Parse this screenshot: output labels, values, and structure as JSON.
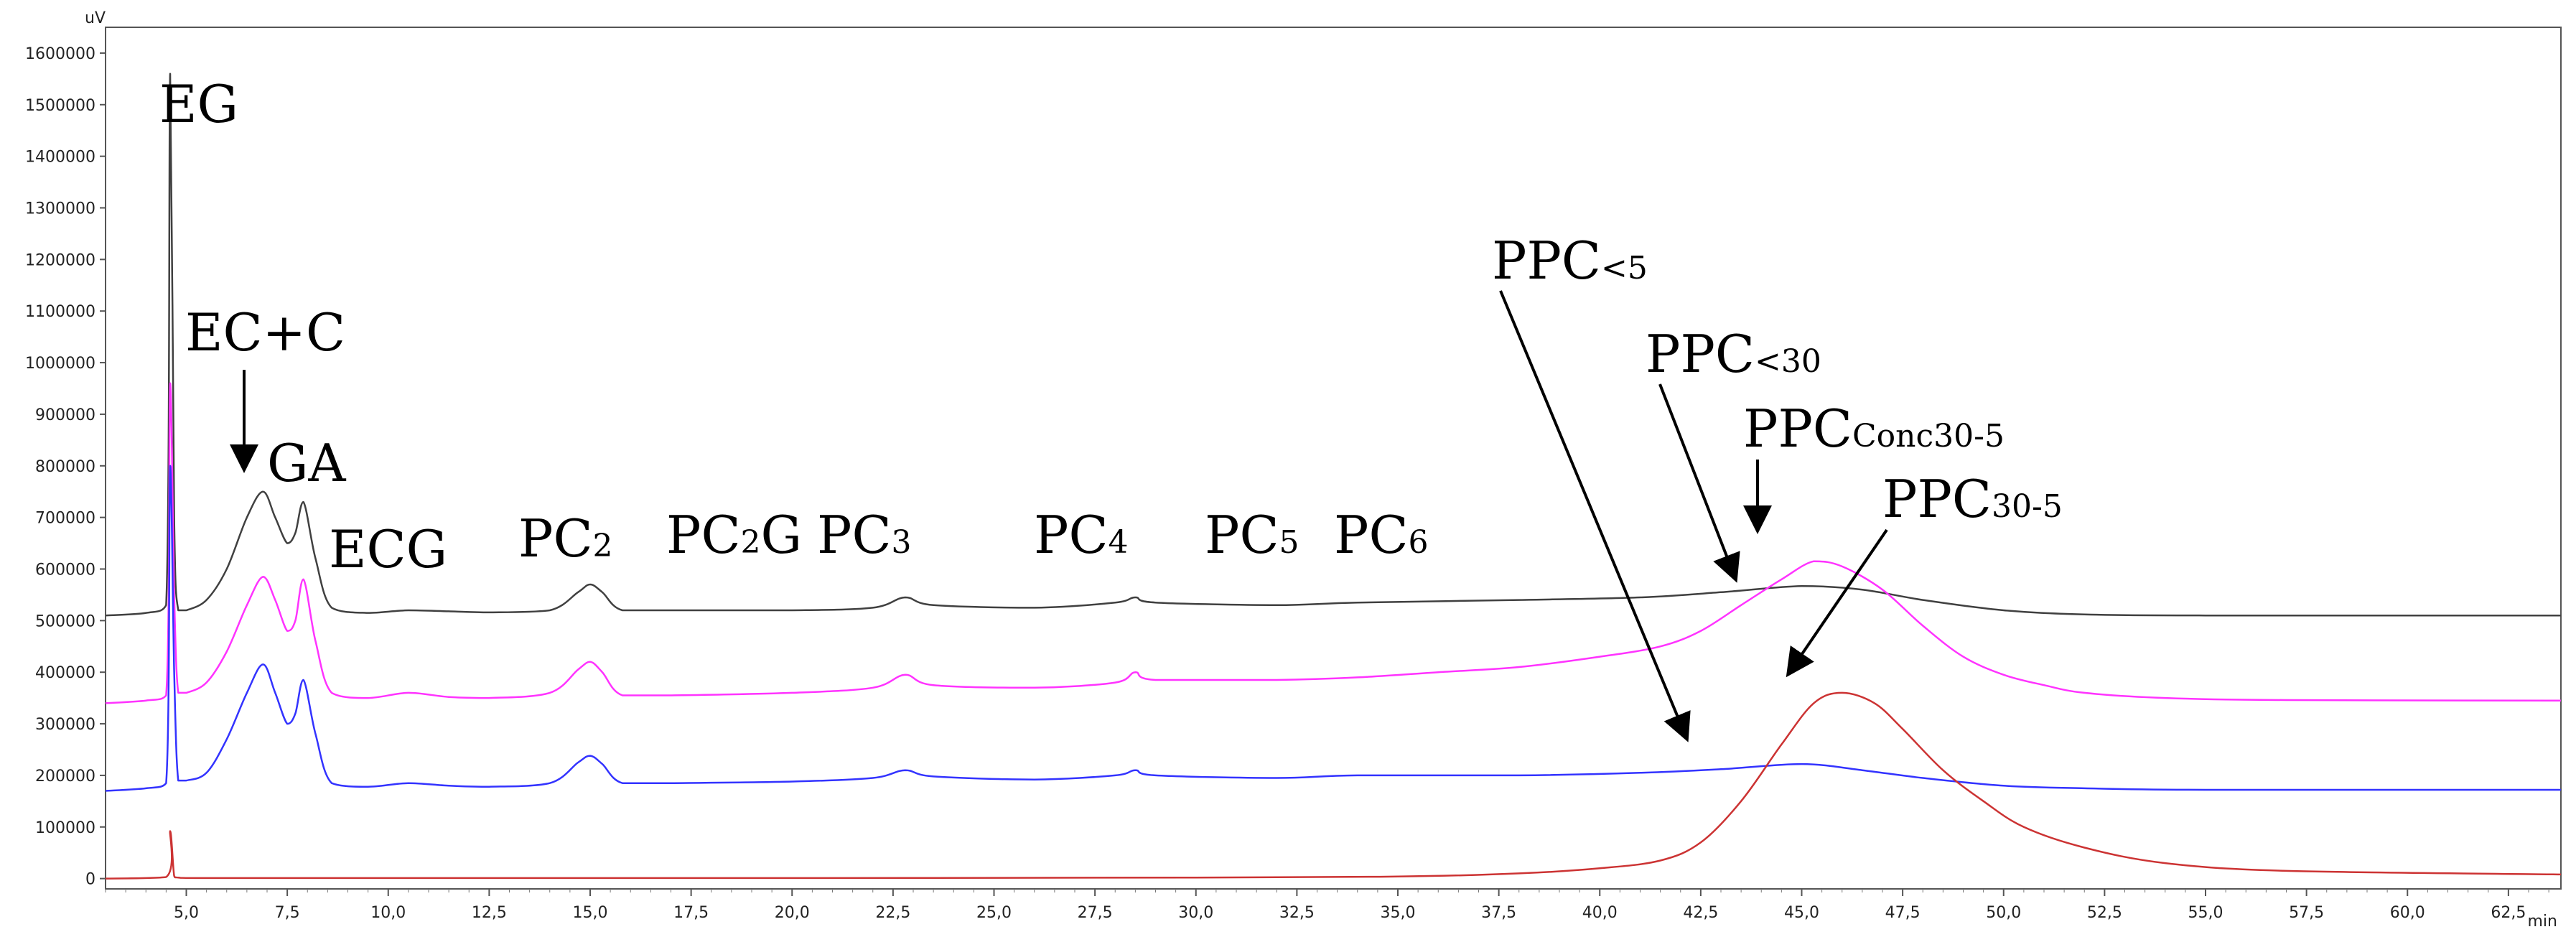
{
  "chart_data": {
    "type": "line",
    "y_unit_label": "uV",
    "x_unit_label": "min",
    "xlim": [
      3.0,
      63.8
    ],
    "ylim": [
      -20000,
      1650000
    ],
    "x_ticks": [
      5.0,
      7.5,
      10.0,
      12.5,
      15.0,
      17.5,
      20.0,
      22.5,
      25.0,
      27.5,
      30.0,
      32.5,
      35.0,
      37.5,
      40.0,
      42.5,
      45.0,
      47.5,
      50.0,
      52.5,
      55.0,
      57.5,
      60.0,
      62.5
    ],
    "x_tick_labels": [
      "5,0",
      "7,5",
      "10,0",
      "12,5",
      "15,0",
      "17,5",
      "20,0",
      "22,5",
      "25,0",
      "27,5",
      "30,0",
      "32,5",
      "35,0",
      "37,5",
      "40,0",
      "42,5",
      "45,0",
      "47,5",
      "50,0",
      "52,5",
      "55,0",
      "57,5",
      "60,0",
      "62,5"
    ],
    "y_ticks": [
      0,
      100000,
      200000,
      300000,
      400000,
      500000,
      600000,
      700000,
      800000,
      900000,
      1000000,
      1100000,
      1200000,
      1300000,
      1400000,
      1500000,
      1600000
    ],
    "y_tick_labels": [
      "0",
      "100000",
      "200000",
      "300000",
      "400000",
      "500000",
      "600000",
      "700000",
      "800000",
      "900000",
      "1000000",
      "1100000",
      "1200000",
      "1300000",
      "1400000",
      "1500000",
      "1600000"
    ],
    "grid": false,
    "series": [
      {
        "color": "#404040",
        "x": [
          3.0,
          4.0,
          4.5,
          4.6,
          4.7,
          4.8,
          5.0,
          5.5,
          6.0,
          6.5,
          6.9,
          7.2,
          7.5,
          7.7,
          7.9,
          8.2,
          8.6,
          9.5,
          10.5,
          11.5,
          12.5,
          14.0,
          14.7,
          15.0,
          15.3,
          15.8,
          17.0,
          20.0,
          22.0,
          22.8,
          23.5,
          26.0,
          28.0,
          28.5,
          29.0,
          32.0,
          34.0,
          38.0,
          41.0,
          43.0,
          45.0,
          46.5,
          48.0,
          50.0,
          52.0,
          55.0,
          63.8
        ],
        "y": [
          510000,
          515000,
          530000,
          1560000,
          700000,
          520000,
          520000,
          540000,
          600000,
          700000,
          750000,
          700000,
          650000,
          670000,
          730000,
          620000,
          525000,
          515000,
          520000,
          518000,
          516000,
          520000,
          555000,
          570000,
          555000,
          520000,
          520000,
          520000,
          525000,
          545000,
          530000,
          525000,
          535000,
          545000,
          535000,
          530000,
          535000,
          540000,
          545000,
          555000,
          567000,
          560000,
          540000,
          520000,
          512000,
          510000,
          510000
        ]
      },
      {
        "color": "#ff33ff",
        "x": [
          3.0,
          4.0,
          4.5,
          4.6,
          4.7,
          4.8,
          5.0,
          5.5,
          6.0,
          6.5,
          6.9,
          7.2,
          7.5,
          7.7,
          7.9,
          8.2,
          8.6,
          9.5,
          10.5,
          11.5,
          12.5,
          14.0,
          14.7,
          15.0,
          15.3,
          15.8,
          17.0,
          20.0,
          22.0,
          22.8,
          23.5,
          26.0,
          28.0,
          28.5,
          29.0,
          32.0,
          34.0,
          36.0,
          38.0,
          40.0,
          41.5,
          42.5,
          43.5,
          44.5,
          45.3,
          46.0,
          47.0,
          48.0,
          49.0,
          50.0,
          51.0,
          52.0,
          54.0,
          57.0,
          63.8
        ],
        "y": [
          340000,
          345000,
          355000,
          960000,
          550000,
          360000,
          360000,
          380000,
          440000,
          530000,
          585000,
          540000,
          480000,
          500000,
          580000,
          460000,
          360000,
          350000,
          360000,
          352000,
          350000,
          360000,
          405000,
          420000,
          400000,
          355000,
          355000,
          360000,
          370000,
          395000,
          375000,
          370000,
          380000,
          400000,
          385000,
          385000,
          390000,
          400000,
          410000,
          430000,
          450000,
          480000,
          530000,
          580000,
          615000,
          605000,
          560000,
          490000,
          430000,
          395000,
          375000,
          360000,
          350000,
          346000,
          345000
        ]
      },
      {
        "color": "#3333ff",
        "x": [
          3.0,
          4.0,
          4.5,
          4.6,
          4.7,
          4.8,
          5.0,
          5.5,
          6.0,
          6.5,
          6.9,
          7.2,
          7.5,
          7.7,
          7.9,
          8.2,
          8.6,
          9.5,
          10.5,
          11.5,
          12.5,
          14.0,
          14.7,
          15.0,
          15.3,
          15.8,
          17.0,
          20.0,
          22.0,
          22.8,
          23.5,
          26.0,
          28.0,
          28.5,
          29.0,
          32.0,
          34.0,
          38.0,
          41.0,
          43.0,
          45.0,
          46.5,
          48.0,
          50.0,
          52.0,
          55.0,
          63.8
        ],
        "y": [
          170000,
          175000,
          185000,
          800000,
          400000,
          190000,
          190000,
          205000,
          270000,
          360000,
          415000,
          360000,
          300000,
          320000,
          385000,
          280000,
          185000,
          178000,
          185000,
          180000,
          178000,
          185000,
          225000,
          238000,
          222000,
          185000,
          185000,
          188000,
          195000,
          210000,
          198000,
          192000,
          200000,
          210000,
          200000,
          195000,
          200000,
          200000,
          205000,
          212000,
          222000,
          210000,
          195000,
          180000,
          175000,
          172000,
          172000
        ]
      },
      {
        "color": "#cc3333",
        "x": [
          3.0,
          4.5,
          4.6,
          4.7,
          4.8,
          5.5,
          10.0,
          20.0,
          30.0,
          35.0,
          38.0,
          40.0,
          41.5,
          42.5,
          43.5,
          44.5,
          45.3,
          46.0,
          46.8,
          47.5,
          48.5,
          49.5,
          50.5,
          52.0,
          54.0,
          57.0,
          63.8
        ],
        "y": [
          0,
          3000,
          92000,
          5000,
          2000,
          1000,
          1000,
          1000,
          2000,
          4000,
          10000,
          20000,
          35000,
          70000,
          150000,
          260000,
          340000,
          360000,
          340000,
          290000,
          210000,
          150000,
          100000,
          60000,
          30000,
          15000,
          8000
        ]
      }
    ],
    "annotations": [
      {
        "text": "EG",
        "sub": ""
      },
      {
        "text": "EC+C",
        "sub": ""
      },
      {
        "text": "GA",
        "sub": ""
      },
      {
        "text": "ECG",
        "sub": ""
      },
      {
        "text": "PC",
        "sub": "2"
      },
      {
        "text": "PC",
        "sub": "2",
        "tail": "G"
      },
      {
        "text": "PC",
        "sub": "3"
      },
      {
        "text": "PC",
        "sub": "4"
      },
      {
        "text": "PC",
        "sub": "5"
      },
      {
        "text": "PC",
        "sub": "6"
      },
      {
        "text": "PPC",
        "sub": "<5"
      },
      {
        "text": "PPC",
        "sub": "<30"
      },
      {
        "text": "PPC",
        "sub": "Conc30-5"
      },
      {
        "text": "PPC",
        "sub": "30-5"
      }
    ]
  }
}
